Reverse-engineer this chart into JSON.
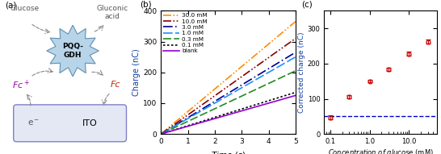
{
  "panel_b": {
    "concentrations": [
      "30.0 mM",
      "10.0 mM",
      "3.0 mM",
      "1.0 mM",
      "0.3 mM",
      "0.1 mM",
      "blank"
    ],
    "slopes": [
      73.0,
      62.0,
      53.0,
      50.0,
      41.0,
      27.0,
      25.0
    ],
    "colors": [
      "#FF8C00",
      "#8B0000",
      "#00008B",
      "#1E90FF",
      "#228B22",
      "#000000",
      "#9400D3"
    ],
    "xlabel": "Time (s)",
    "ylabel": "Charge (nC)",
    "xlim": [
      0,
      5
    ],
    "ylim": [
      0,
      400
    ],
    "yticks": [
      0,
      100,
      200,
      300,
      400
    ],
    "xticks": [
      0,
      1,
      2,
      3,
      4,
      5
    ]
  },
  "panel_c": {
    "x": [
      0.1,
      0.3,
      1.0,
      3.0,
      10.0,
      30.0
    ],
    "y": [
      47.0,
      106.0,
      150.0,
      183.0,
      228.0,
      262.0
    ],
    "yerr": [
      6.0,
      5.0,
      4.0,
      5.0,
      6.0,
      6.0
    ],
    "dashed_y": 50.0,
    "point_color": "#CC0000",
    "dashed_color": "#0000CC",
    "xlabel": "Concentration of glucose (mM)",
    "ylabel": "Corrected charge (nC)",
    "xlim_log": [
      -1.3,
      1.7
    ],
    "ylim": [
      0,
      350
    ],
    "yticks": [
      0,
      100,
      200,
      300
    ]
  }
}
